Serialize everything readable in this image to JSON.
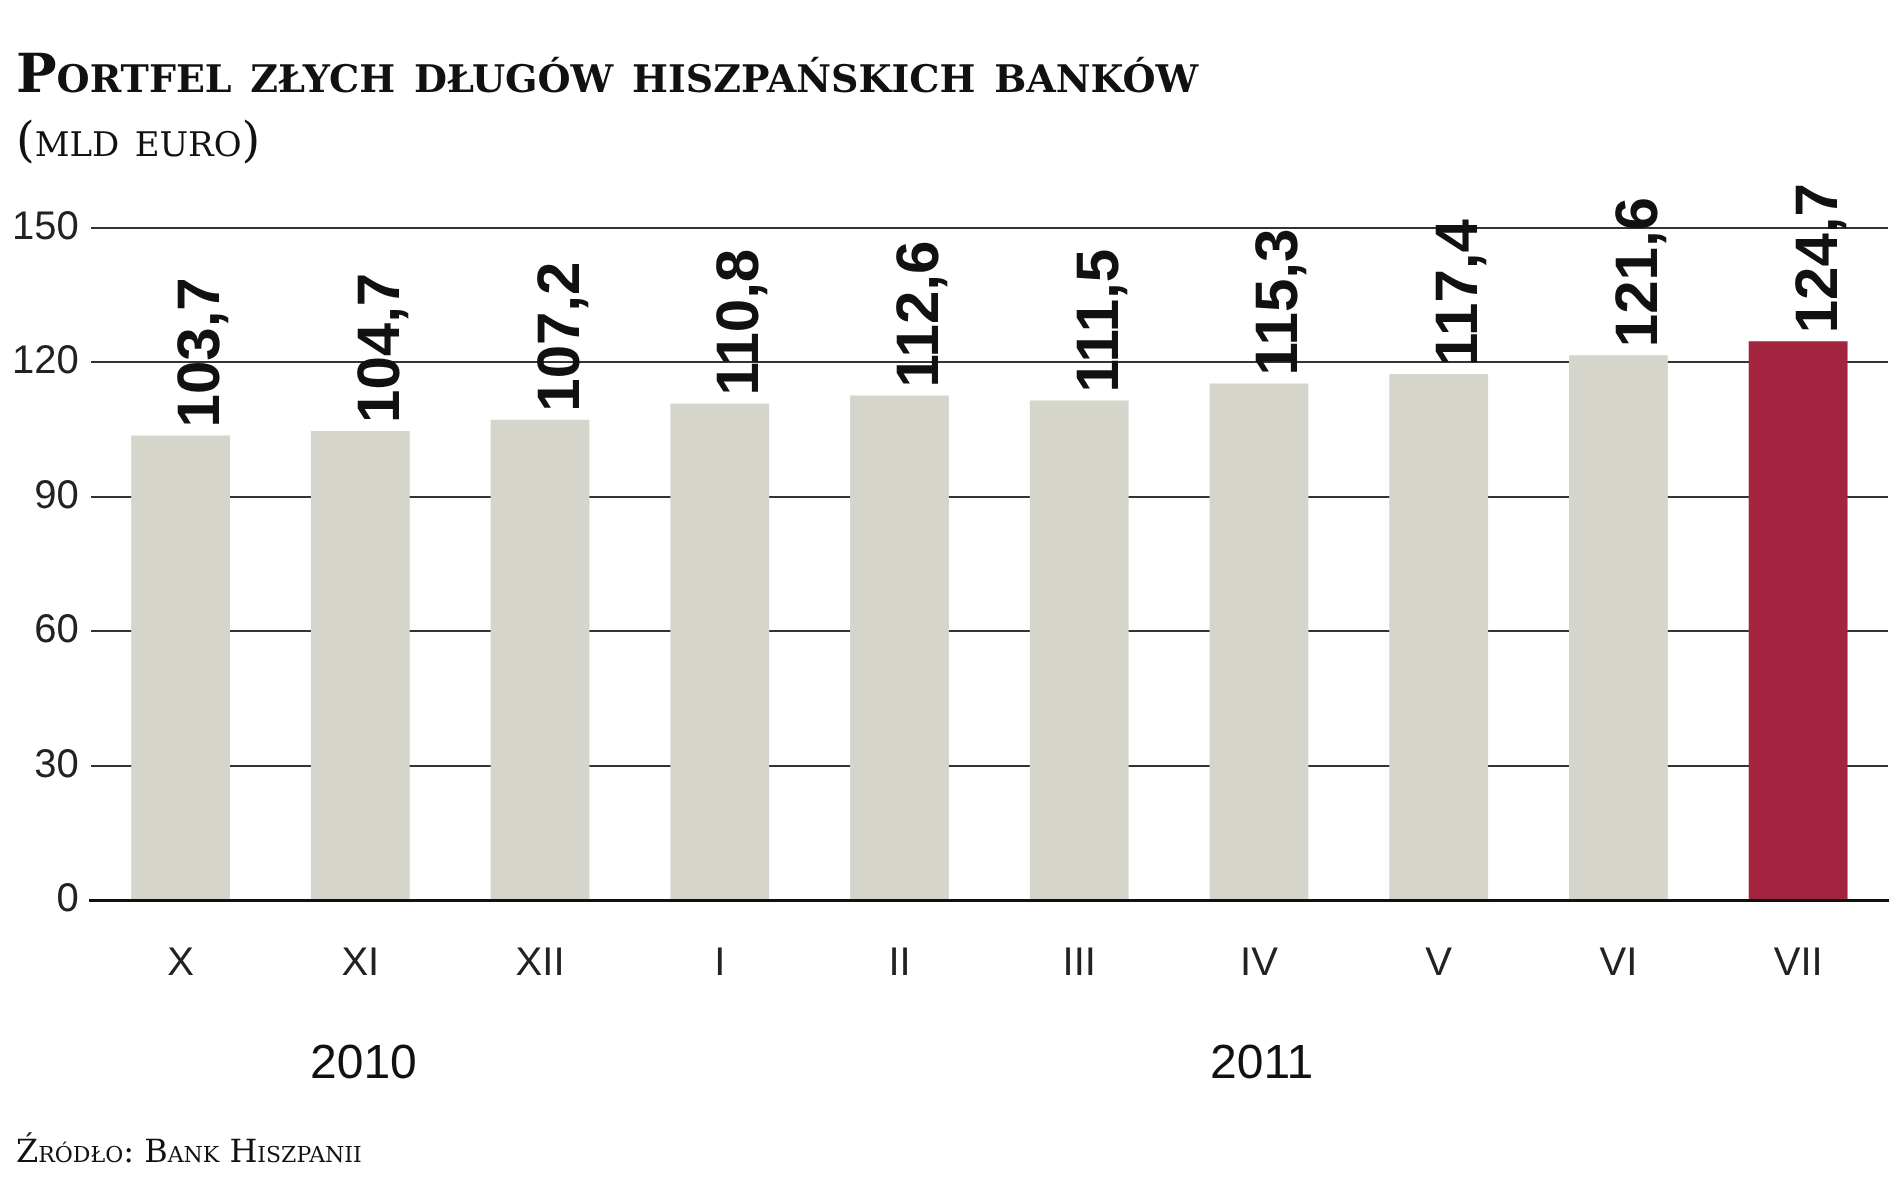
{
  "chart_data": {
    "type": "bar",
    "title": "Portfel złych długów hiszpańskich banków",
    "subtitle": "(mld euro)",
    "categories": [
      "X",
      "XI",
      "XII",
      "I",
      "II",
      "III",
      "IV",
      "V",
      "VI",
      "VII"
    ],
    "values": [
      103.7,
      104.7,
      107.2,
      110.8,
      112.6,
      111.5,
      115.3,
      117.4,
      121.6,
      124.7
    ],
    "colors": [
      "#d5d5cc",
      "#d5d5cc",
      "#d5d5cc",
      "#d5d5cc",
      "#d5d5cc",
      "#d5d5cc",
      "#d5d5cc",
      "#d5d5cc",
      "#d5d5cc",
      "#a3243f"
    ],
    "value_labels": [
      "103,7",
      "104,7",
      "107,2",
      "110,8",
      "112,6",
      "111,5",
      "115,3",
      "117,4",
      "121,6",
      "124,7"
    ],
    "ylim": [
      0,
      150
    ],
    "yticks": [
      0,
      30,
      60,
      90,
      120,
      150
    ],
    "grid": "y",
    "annotations": [
      "2010",
      "2011",
      "Źródło: Bank Hiszpanii"
    ]
  }
}
